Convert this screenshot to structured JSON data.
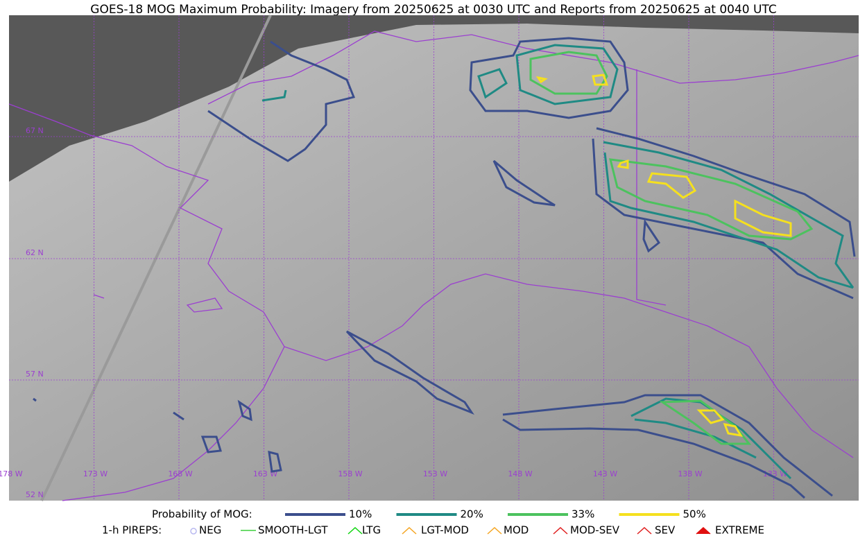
{
  "title": "GOES-18 MOG Maximum Probability: Imagery from 20250625 at 0030 UTC and Reports from 20250625 at 0040 UTC",
  "map": {
    "lat_labels": [
      "67 N",
      "62 N",
      "57 N",
      "52 N"
    ],
    "lon_labels": [
      "178 W",
      "173 W",
      "168 W",
      "163 W",
      "158 W",
      "153 W",
      "148 W",
      "143 W",
      "138 W",
      "133 W"
    ]
  },
  "legend": {
    "probability_label": "Probability of MOG:",
    "probability_levels": [
      {
        "label": "10%",
        "color": "#3b4e8c"
      },
      {
        "label": "20%",
        "color": "#1f8a84"
      },
      {
        "label": "33%",
        "color": "#4cc25e"
      },
      {
        "label": "50%",
        "color": "#f5e01e"
      }
    ],
    "pireps_label": "1-h PIREPS:",
    "pireps": [
      "NEG",
      "SMOOTH-LGT",
      "LTG",
      "LGT-MOD",
      "MOD",
      "MOD-SEV",
      "SEV",
      "EXTREME"
    ]
  }
}
